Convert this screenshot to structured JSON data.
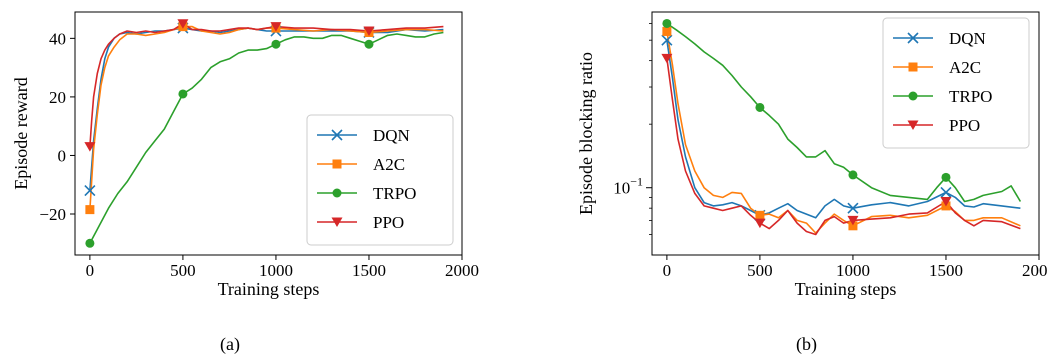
{
  "captions": [
    "(a)",
    "(b)"
  ],
  "colors": {
    "DQN": "#1f77b4",
    "A2C": "#ff7f0e",
    "TRPO": "#2ca02c",
    "PPO": "#d62728"
  },
  "chart_data": [
    {
      "type": "line",
      "xlabel": "Training steps",
      "ylabel": "Episode reward",
      "xlim": [
        -80,
        2000
      ],
      "ylim": [
        -34,
        49
      ],
      "xticks": [
        0,
        500,
        1000,
        1500,
        2000
      ],
      "xtick_labels": [
        "0",
        "500",
        "1000",
        "1500",
        "2000"
      ],
      "yticks": [
        -20,
        0,
        20,
        40
      ],
      "ytick_labels": [
        "−20",
        "0",
        "20",
        "40"
      ],
      "yscale": "linear",
      "legend_position": "lower-right",
      "series": [
        {
          "name": "DQN",
          "marker": "x",
          "x": [
            0,
            20,
            40,
            60,
            80,
            100,
            130,
            160,
            200,
            250,
            300,
            350,
            400,
            450,
            500,
            550,
            600,
            650,
            700,
            750,
            800,
            850,
            900,
            950,
            1000,
            1100,
            1200,
            1300,
            1400,
            1500,
            1600,
            1700,
            1800,
            1900
          ],
          "y": [
            -12,
            5,
            16,
            26,
            33,
            37,
            40,
            41.5,
            42,
            41.5,
            42,
            42.5,
            42.5,
            43,
            43.5,
            43,
            42.5,
            42.5,
            42,
            42.5,
            43,
            43.5,
            43,
            42.5,
            42.5,
            42.5,
            42.5,
            42.5,
            42.5,
            42,
            42,
            43,
            42.5,
            43
          ]
        },
        {
          "name": "A2C",
          "marker": "square",
          "x": [
            0,
            20,
            40,
            60,
            80,
            100,
            130,
            160,
            200,
            250,
            300,
            350,
            400,
            450,
            500,
            550,
            600,
            650,
            700,
            750,
            800,
            850,
            900,
            950,
            1000,
            1100,
            1200,
            1300,
            1400,
            1500,
            1600,
            1700,
            1800,
            1900
          ],
          "y": [
            -18.5,
            2,
            14,
            24,
            30,
            34,
            37,
            39.5,
            41.5,
            41.5,
            41,
            41.5,
            42,
            43,
            44,
            44,
            42.5,
            42,
            41.5,
            42,
            43,
            43.5,
            43,
            43.5,
            43.5,
            43,
            42.5,
            43,
            42.5,
            42,
            42.5,
            43,
            43,
            42.5
          ]
        },
        {
          "name": "TRPO",
          "marker": "circle",
          "x": [
            0,
            50,
            100,
            150,
            200,
            250,
            300,
            350,
            400,
            450,
            500,
            550,
            600,
            650,
            700,
            750,
            800,
            850,
            900,
            950,
            1000,
            1050,
            1100,
            1150,
            1200,
            1250,
            1300,
            1350,
            1400,
            1450,
            1500,
            1550,
            1600,
            1650,
            1700,
            1750,
            1800,
            1850,
            1900
          ],
          "y": [
            -30,
            -24,
            -18,
            -13,
            -9,
            -4,
            1,
            5,
            9,
            15,
            21,
            23,
            26,
            30,
            32,
            33,
            35,
            36,
            36,
            36.5,
            38,
            39.5,
            40.5,
            40.5,
            40,
            40,
            41,
            41,
            40,
            39,
            38,
            39.5,
            41,
            41.5,
            41,
            40.5,
            40.5,
            41.5,
            42
          ]
        },
        {
          "name": "PPO",
          "marker": "triangle-down",
          "x": [
            0,
            10,
            20,
            40,
            60,
            80,
            100,
            130,
            160,
            200,
            250,
            300,
            350,
            400,
            450,
            500,
            550,
            600,
            650,
            700,
            750,
            800,
            850,
            900,
            950,
            1000,
            1100,
            1200,
            1300,
            1400,
            1500,
            1600,
            1700,
            1800,
            1900
          ],
          "y": [
            3,
            12,
            20,
            28,
            33,
            36,
            38,
            40,
            41.5,
            42.5,
            42,
            42.5,
            42,
            42.5,
            43,
            45,
            43,
            43,
            42.5,
            42.5,
            43,
            43.5,
            43.5,
            43,
            43.5,
            44,
            43.5,
            43.5,
            43,
            43,
            42.5,
            43,
            43.5,
            43.5,
            44
          ]
        }
      ]
    },
    {
      "type": "line",
      "xlabel": "Training steps",
      "ylabel": "Episode blocking ratio",
      "xlim": [
        -80,
        2000
      ],
      "ylim": [
        0.048,
        0.68
      ],
      "yscale": "log",
      "xticks": [
        0,
        500,
        1000,
        1500,
        2000
      ],
      "xtick_labels": [
        "0",
        "500",
        "1000",
        "1500",
        "2000"
      ],
      "ytick_major": [
        0.1
      ],
      "ytick_major_labels": [
        "10",
        "−1"
      ],
      "ytick_minor": [
        0.06,
        0.07,
        0.08,
        0.09,
        0.2,
        0.3,
        0.4,
        0.5,
        0.6
      ],
      "legend_position": "upper-right",
      "series": [
        {
          "name": "DQN",
          "marker": "x",
          "x": [
            0,
            30,
            60,
            100,
            150,
            200,
            250,
            300,
            350,
            400,
            450,
            500,
            550,
            600,
            650,
            700,
            750,
            800,
            850,
            900,
            950,
            1000,
            1100,
            1200,
            1300,
            1400,
            1500,
            1550,
            1600,
            1650,
            1700,
            1800,
            1900
          ],
          "y": [
            0.5,
            0.33,
            0.21,
            0.14,
            0.1,
            0.085,
            0.082,
            0.083,
            0.085,
            0.082,
            0.078,
            0.074,
            0.076,
            0.08,
            0.084,
            0.078,
            0.075,
            0.072,
            0.082,
            0.088,
            0.082,
            0.08,
            0.083,
            0.085,
            0.082,
            0.086,
            0.095,
            0.09,
            0.082,
            0.081,
            0.084,
            0.082,
            0.08
          ]
        },
        {
          "name": "A2C",
          "marker": "square",
          "x": [
            0,
            30,
            60,
            100,
            150,
            200,
            250,
            300,
            350,
            400,
            450,
            500,
            550,
            600,
            650,
            700,
            750,
            800,
            850,
            900,
            950,
            1000,
            1100,
            1200,
            1300,
            1400,
            1500,
            1550,
            1600,
            1650,
            1700,
            1800,
            1900
          ],
          "y": [
            0.55,
            0.38,
            0.25,
            0.16,
            0.12,
            0.1,
            0.092,
            0.09,
            0.095,
            0.094,
            0.08,
            0.074,
            0.075,
            0.072,
            0.078,
            0.07,
            0.068,
            0.061,
            0.068,
            0.075,
            0.07,
            0.066,
            0.073,
            0.074,
            0.072,
            0.074,
            0.082,
            0.077,
            0.07,
            0.07,
            0.072,
            0.072,
            0.066
          ]
        },
        {
          "name": "TRPO",
          "marker": "circle",
          "x": [
            0,
            50,
            100,
            150,
            200,
            250,
            300,
            350,
            400,
            450,
            500,
            550,
            600,
            650,
            700,
            750,
            800,
            850,
            900,
            950,
            1000,
            1100,
            1200,
            1300,
            1400,
            1450,
            1500,
            1550,
            1600,
            1650,
            1700,
            1800,
            1850,
            1900
          ],
          "y": [
            0.6,
            0.56,
            0.52,
            0.48,
            0.44,
            0.41,
            0.38,
            0.34,
            0.3,
            0.27,
            0.24,
            0.22,
            0.2,
            0.17,
            0.155,
            0.14,
            0.14,
            0.15,
            0.13,
            0.125,
            0.115,
            0.1,
            0.092,
            0.09,
            0.088,
            0.1,
            0.112,
            0.1,
            0.086,
            0.088,
            0.092,
            0.096,
            0.102,
            0.086
          ]
        },
        {
          "name": "PPO",
          "marker": "triangle-down",
          "x": [
            0,
            30,
            60,
            100,
            150,
            200,
            250,
            300,
            350,
            400,
            450,
            500,
            550,
            600,
            650,
            700,
            750,
            800,
            850,
            900,
            950,
            1000,
            1100,
            1200,
            1300,
            1400,
            1500,
            1550,
            1600,
            1650,
            1700,
            1800,
            1900
          ],
          "y": [
            0.41,
            0.26,
            0.17,
            0.12,
            0.094,
            0.082,
            0.08,
            0.078,
            0.08,
            0.082,
            0.074,
            0.068,
            0.064,
            0.07,
            0.078,
            0.068,
            0.062,
            0.06,
            0.07,
            0.073,
            0.068,
            0.07,
            0.071,
            0.072,
            0.075,
            0.076,
            0.086,
            0.076,
            0.07,
            0.066,
            0.07,
            0.069,
            0.064
          ]
        }
      ]
    }
  ]
}
